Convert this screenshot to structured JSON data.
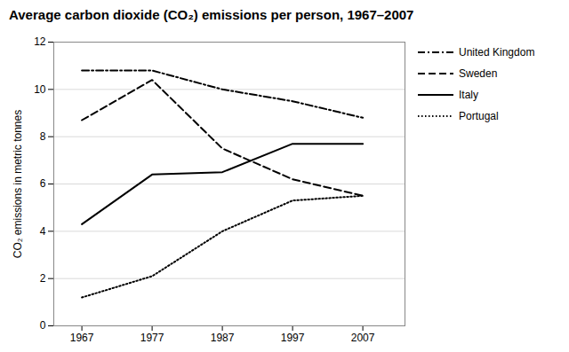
{
  "chart_data": {
    "type": "line",
    "title": "Average carbon dioxide (CO₂) emissions per person, 1967–2007",
    "ylabel": "CO₂ emissions in metric tonnes",
    "x": [
      1967,
      1977,
      1987,
      1997,
      2007
    ],
    "series": [
      {
        "name": "United Kingdom",
        "color": "#000000",
        "line_style": "dashdot",
        "values": [
          10.8,
          10.8,
          10.0,
          9.5,
          8.8
        ]
      },
      {
        "name": "Sweden",
        "color": "#000000",
        "line_style": "dashed",
        "values": [
          8.7,
          10.4,
          7.5,
          6.2,
          5.5
        ]
      },
      {
        "name": "Italy",
        "color": "#000000",
        "line_style": "solid",
        "values": [
          4.3,
          6.4,
          6.5,
          7.7,
          7.7
        ]
      },
      {
        "name": "Portugal",
        "color": "#000000",
        "line_style": "dotted",
        "values": [
          1.2,
          2.1,
          4.0,
          5.3,
          5.5
        ]
      }
    ],
    "xlim": [
      1963,
      2013
    ],
    "xticks": [
      1967,
      1977,
      1987,
      1997,
      2007
    ],
    "ylim": [
      0,
      12
    ],
    "yticks": [
      0,
      2,
      4,
      6,
      8,
      10,
      12
    ],
    "grid": "y",
    "legend": "right"
  }
}
